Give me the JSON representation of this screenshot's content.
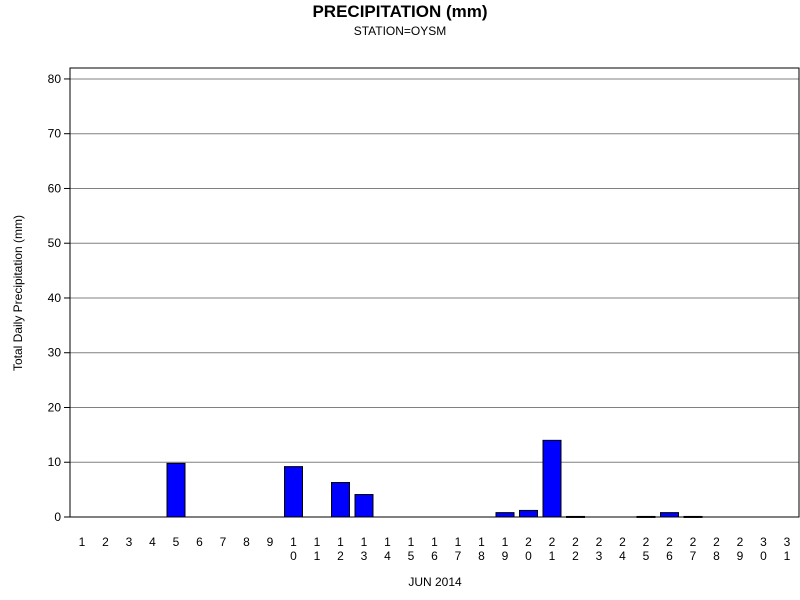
{
  "chart_data": {
    "type": "bar",
    "title": "PRECIPITATION (mm)",
    "subtitle": "STATION=OYSM",
    "xlabel": "JUN 2014",
    "ylabel": "Total Daily Precipitation (mm)",
    "ylim": [
      0,
      82
    ],
    "yticks": [
      0,
      10,
      20,
      30,
      40,
      50,
      60,
      70,
      80
    ],
    "ytick_labels": [
      "0",
      "10",
      "20",
      "30",
      "40",
      "50",
      "60",
      "70",
      "80"
    ],
    "grid": true,
    "legend": "none",
    "categories": [
      "1",
      "2",
      "3",
      "4",
      "5",
      "6",
      "7",
      "8",
      "9",
      "10",
      "11",
      "12",
      "13",
      "14",
      "15",
      "16",
      "17",
      "18",
      "19",
      "20",
      "21",
      "22",
      "23",
      "24",
      "25",
      "26",
      "27",
      "28",
      "29",
      "30",
      "31"
    ],
    "values": [
      0,
      0,
      0,
      0,
      9.8,
      0,
      0,
      0,
      0,
      9.2,
      0,
      6.3,
      4.1,
      0,
      0,
      0,
      0,
      0,
      0.8,
      1.2,
      14.0,
      0.1,
      0,
      0,
      0.1,
      0.8,
      0.1,
      0,
      0,
      0,
      0
    ],
    "colors": {
      "bar_fill": "#0000ff",
      "bar_stroke": "#000000",
      "grid": "#808080",
      "axis": "#000000",
      "background": "#ffffff"
    }
  }
}
